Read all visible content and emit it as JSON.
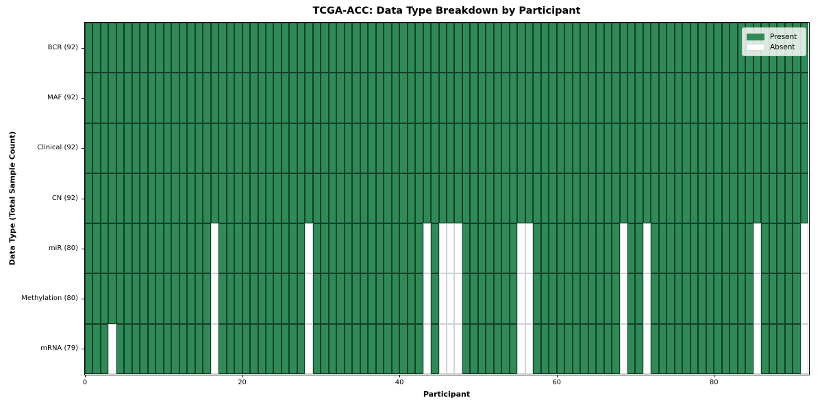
{
  "chart_data": {
    "type": "heatmap",
    "title": "TCGA-ACC: Data Type Breakdown by Participant",
    "xlabel": "Participant",
    "ylabel": "Data Type (Total Sample Count)",
    "n_participants": 92,
    "x_ticks": [
      0,
      20,
      40,
      60,
      80
    ],
    "xlim": [
      0,
      92
    ],
    "grid": false,
    "legend_position": "upper right",
    "colors": {
      "present": "#2e8b57",
      "absent": "#ffffff",
      "present_edge": "rgba(0,0,0,0.55)",
      "absent_edge": "rgba(0,0,0,0.18)"
    },
    "legend": [
      {
        "label": "Present",
        "color": "#2e8b57"
      },
      {
        "label": "Absent",
        "color": "#ffffff"
      }
    ],
    "rows": [
      {
        "label": "BCR (92)",
        "name": "BCR",
        "present_count": 92,
        "absent_participants": []
      },
      {
        "label": "MAF (92)",
        "name": "MAF",
        "present_count": 92,
        "absent_participants": []
      },
      {
        "label": "Clinical (92)",
        "name": "Clinical",
        "present_count": 92,
        "absent_participants": []
      },
      {
        "label": "CN (92)",
        "name": "CN",
        "present_count": 92,
        "absent_participants": []
      },
      {
        "label": "miR (80)",
        "name": "miR",
        "present_count": 80,
        "absent_participants": [
          16,
          28,
          43,
          45,
          46,
          47,
          55,
          56,
          68,
          71,
          85,
          91
        ]
      },
      {
        "label": "Methylation (80)",
        "name": "Methylation",
        "present_count": 80,
        "absent_participants": [
          16,
          28,
          43,
          45,
          46,
          47,
          55,
          56,
          68,
          71,
          85,
          91
        ]
      },
      {
        "label": "mRNA (79)",
        "name": "mRNA",
        "present_count": 79,
        "absent_participants": [
          3,
          16,
          28,
          43,
          45,
          46,
          47,
          55,
          56,
          68,
          71,
          85,
          91
        ]
      }
    ]
  }
}
